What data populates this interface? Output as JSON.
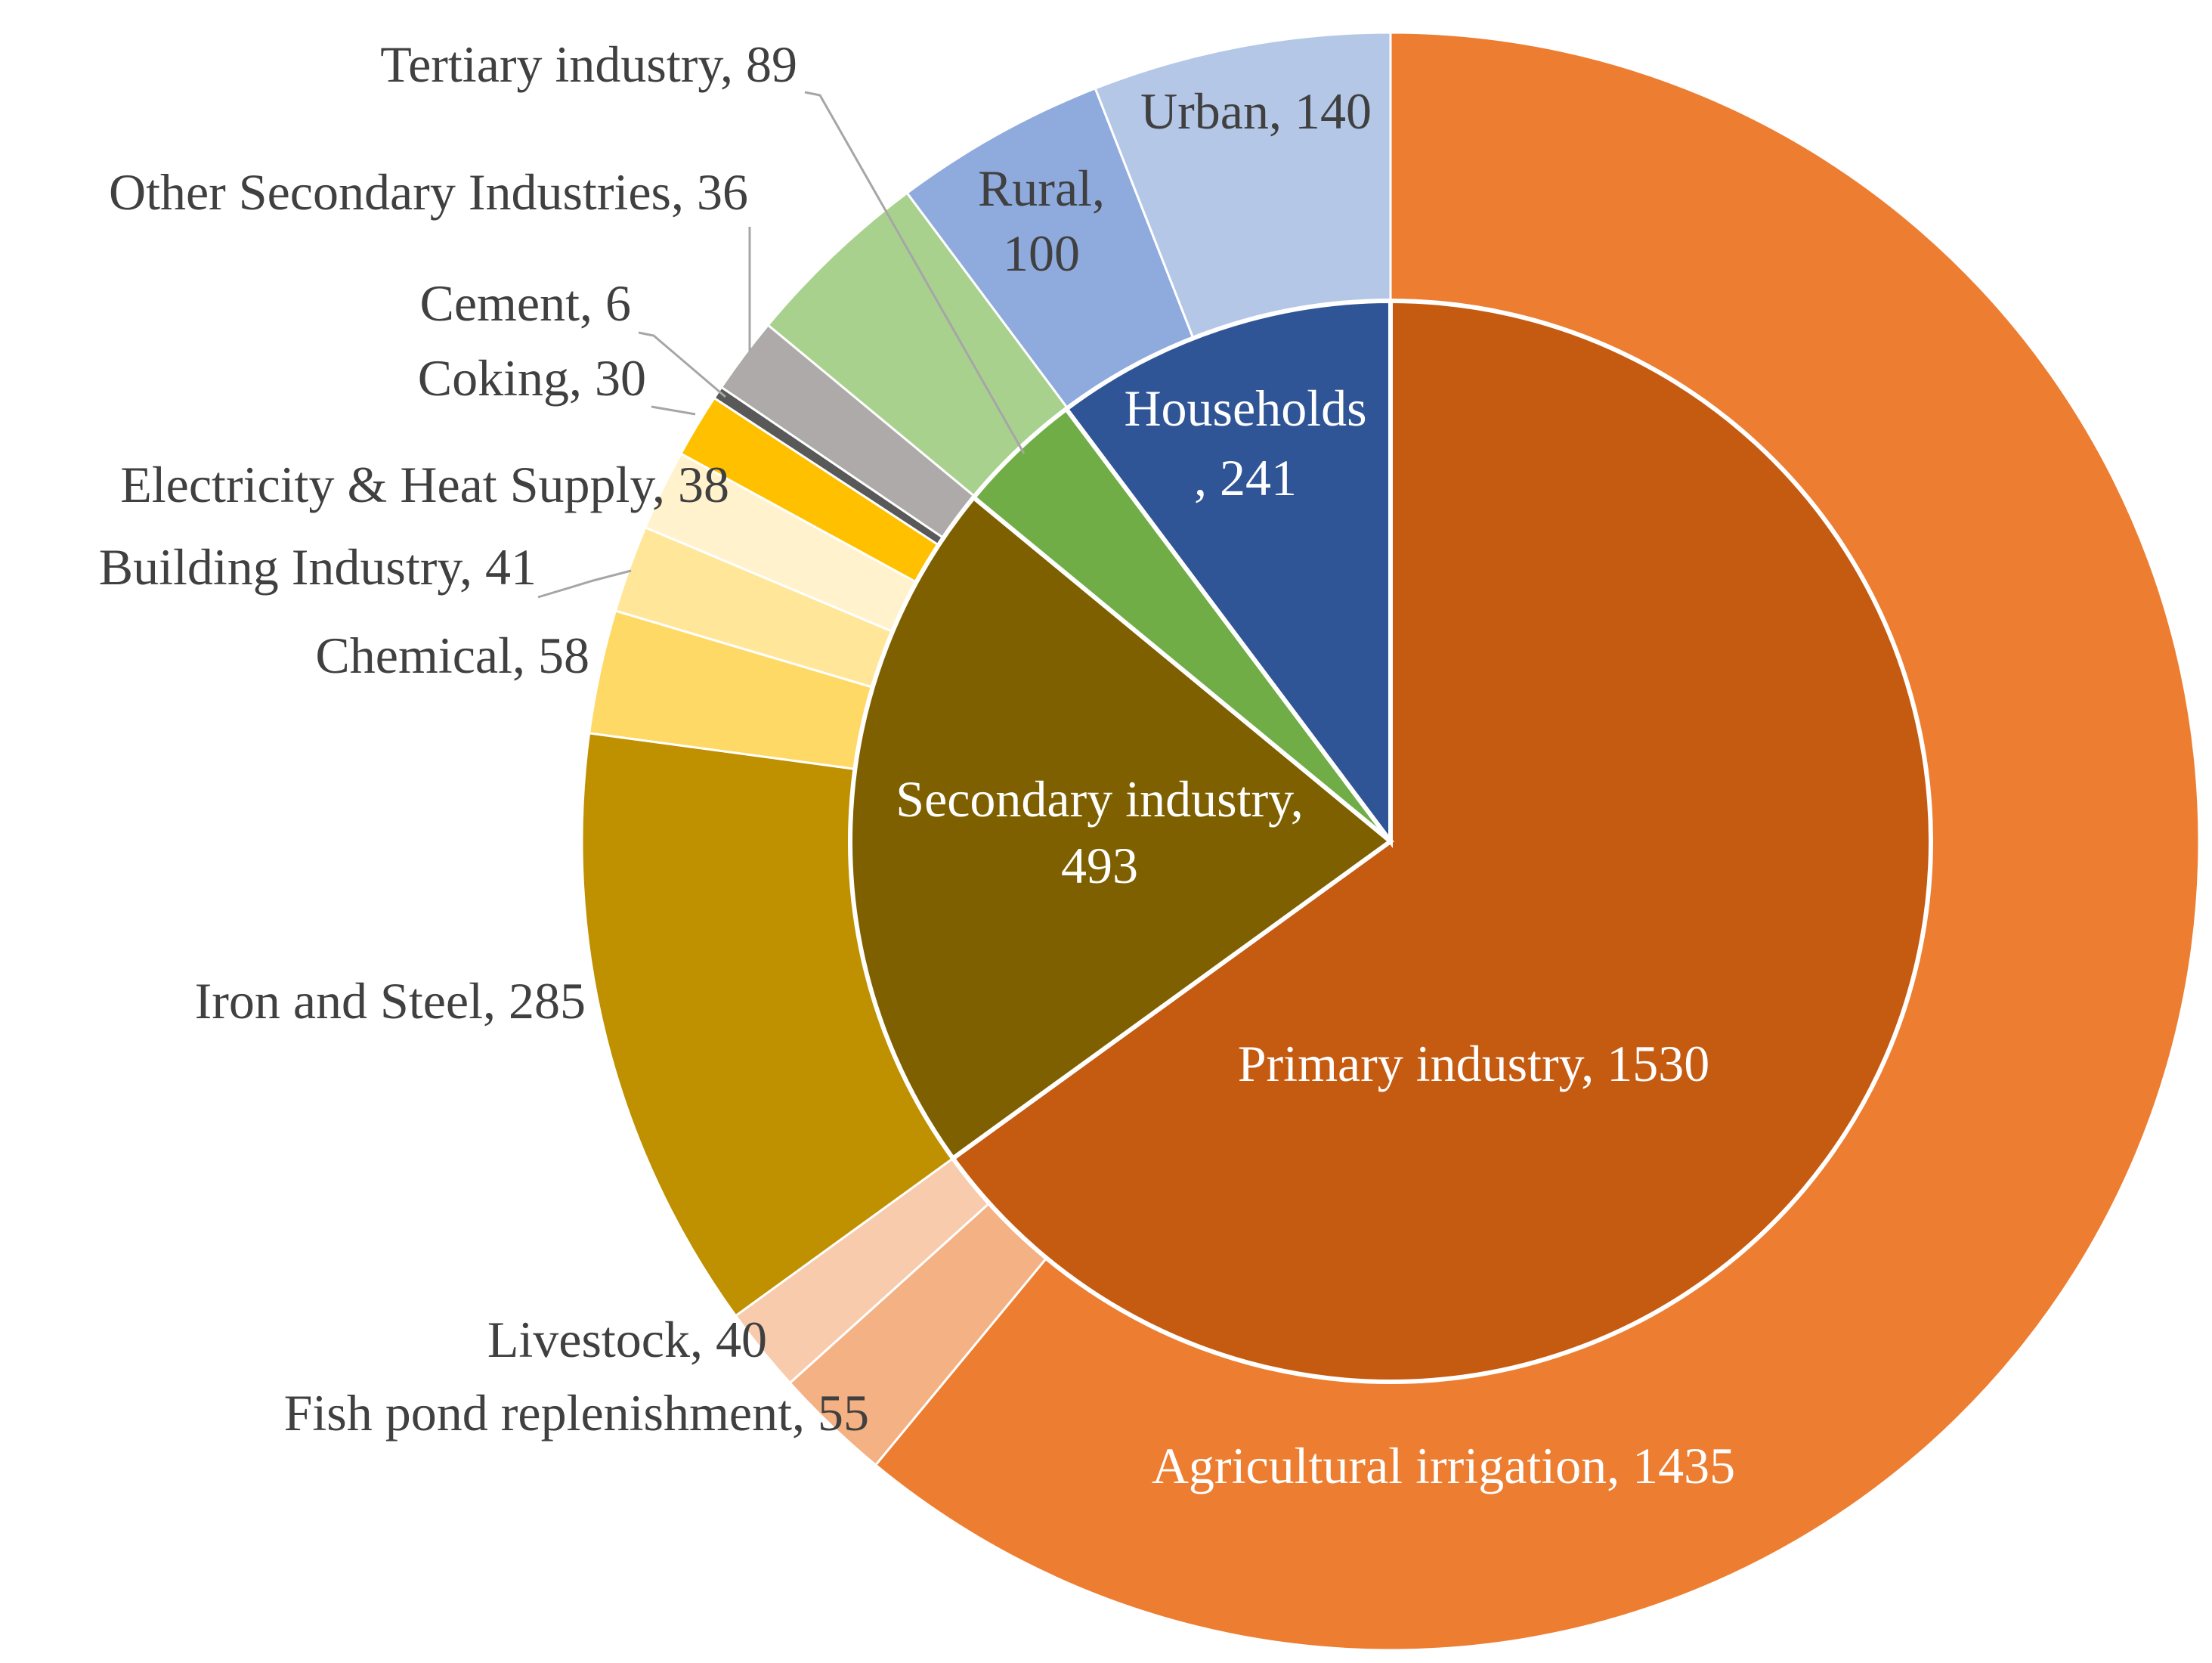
{
  "chart_data": {
    "type": "pie",
    "subtype": "nested-donut",
    "title": "",
    "series": [
      {
        "name": "Sectors (inner)",
        "points": [
          {
            "name": "Primary industry",
            "value": 1530,
            "color": "#C55A11",
            "label_color": "#ffffff"
          },
          {
            "name": "Secondary industry",
            "value": 493,
            "color": "#7F6000",
            "label_color": "#ffffff"
          },
          {
            "name": "Tertiary industry",
            "value": 89,
            "color": "#70AD47",
            "label_color": "#404040"
          },
          {
            "name": "Households",
            "value": 241,
            "color": "#2F5597",
            "label_color": "#ffffff"
          }
        ]
      },
      {
        "name": "Subsectors (outer)",
        "points": [
          {
            "name": "Agricultural irrigation",
            "value": 1435,
            "color": "#ED7D31",
            "label_color": "#ffffff"
          },
          {
            "name": "Fish pond replenishment",
            "value": 55,
            "color": "#F4B183",
            "label_color": "#404040"
          },
          {
            "name": "Livestock",
            "value": 40,
            "color": "#F8CBAD",
            "label_color": "#404040"
          },
          {
            "name": "Iron and Steel",
            "value": 285,
            "color": "#BF9000",
            "label_color": "#404040"
          },
          {
            "name": "Chemical",
            "value": 58,
            "color": "#FFD966",
            "label_color": "#404040"
          },
          {
            "name": "Building Industry",
            "value": 41,
            "color": "#FFE699",
            "label_color": "#404040"
          },
          {
            "name": "Electricity & Heat Supply",
            "value": 38,
            "color": "#FFF2CC",
            "label_color": "#404040"
          },
          {
            "name": "Coking",
            "value": 30,
            "color": "#FFC000",
            "label_color": "#404040"
          },
          {
            "name": "Cement",
            "value": 6,
            "color": "#595959",
            "label_color": "#404040"
          },
          {
            "name": "Other Secondary Industries",
            "value": 36,
            "color": "#AEAAAA",
            "label_color": "#404040"
          },
          {
            "name": "Tertiary industry",
            "value": 89,
            "color": "#A9D18E",
            "label_color": "#404040"
          },
          {
            "name": "Rural",
            "value": 100,
            "color": "#8FAADC",
            "label_color": "#404040"
          },
          {
            "name": "Urban",
            "value": 140,
            "color": "#B4C7E7",
            "label_color": "#404040"
          }
        ]
      }
    ],
    "labels": [
      {
        "text": "Primary industry, 1530",
        "color": "#ffffff"
      },
      {
        "text": "Secondary industry,|493",
        "color": "#ffffff"
      },
      {
        "text": "Households|, 241",
        "color": "#ffffff"
      },
      {
        "text": "Agricultural irrigation, 1435",
        "color": "#ffffff"
      },
      {
        "text": "Fish pond replenishment, 55",
        "color": "#404040"
      },
      {
        "text": "Livestock, 40",
        "color": "#404040"
      },
      {
        "text": "Iron and Steel, 285",
        "color": "#404040"
      },
      {
        "text": "Chemical, 58",
        "color": "#404040"
      },
      {
        "text": "Building Industry, 41",
        "color": "#404040"
      },
      {
        "text": "Electricity & Heat Supply, 38",
        "color": "#404040"
      },
      {
        "text": "Coking, 30",
        "color": "#404040"
      },
      {
        "text": "Cement, 6",
        "color": "#404040"
      },
      {
        "text": "Other Secondary Industries, 36",
        "color": "#404040"
      },
      {
        "text": "Tertiary industry, 89",
        "color": "#404040"
      },
      {
        "text": "Rural,|100",
        "color": "#404040"
      },
      {
        "text": "Urban, 140",
        "color": "#404040"
      }
    ]
  }
}
